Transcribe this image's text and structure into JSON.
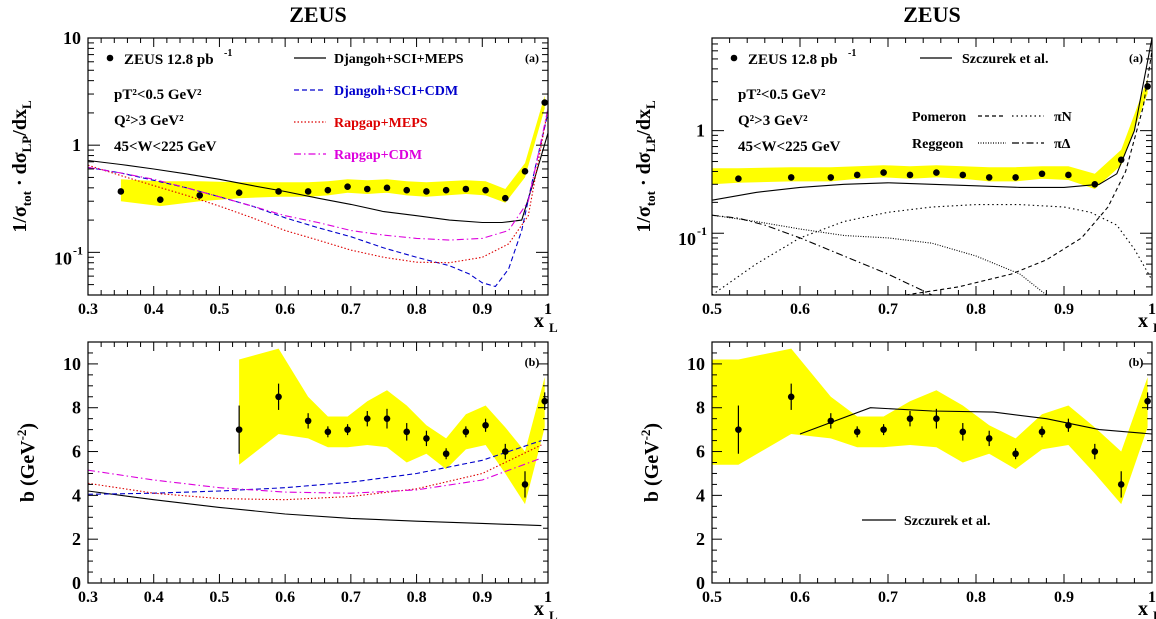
{
  "chart_data": [
    {
      "id": "left-top",
      "type": "line",
      "title": "ZEUS",
      "panel_label": "(a)",
      "ylabel": "1/σtot · dσLP/dxL",
      "xlabel": "xL",
      "xlim": [
        0.3,
        1.0
      ],
      "ylim": [
        0.04,
        10
      ],
      "yscale": "log",
      "xticks": [
        "0.3",
        "0.4",
        "0.5",
        "0.6",
        "0.7",
        "0.8",
        "0.9",
        "1"
      ],
      "yticks": [
        {
          "v": 0.1,
          "label": "10⁻¹"
        },
        {
          "v": 1,
          "label": "1"
        },
        {
          "v": 10,
          "label": "10"
        }
      ],
      "legend": {
        "data": "ZEUS 12.8 pb⁻¹",
        "cuts": [
          "pT²<0.5 GeV²",
          "Q²>3 GeV²",
          "45<W<225 GeV"
        ],
        "entries": [
          {
            "name": "Djangoh+SCI+MEPS",
            "color": "#000000",
            "dash": ""
          },
          {
            "name": "Djangoh+SCI+CDM",
            "color": "#0000cc",
            "dash": "5,3"
          },
          {
            "name": "Rapgap+MEPS",
            "color": "#dd0000",
            "dash": "1.5,2"
          },
          {
            "name": "Rapgap+CDM",
            "color": "#dd00dd",
            "dash": "7,3,1.5,3"
          }
        ]
      },
      "data": {
        "x": [
          0.35,
          0.41,
          0.47,
          0.53,
          0.59,
          0.635,
          0.665,
          0.695,
          0.725,
          0.755,
          0.785,
          0.815,
          0.845,
          0.875,
          0.905,
          0.935,
          0.965,
          0.995
        ],
        "y": [
          0.37,
          0.31,
          0.34,
          0.36,
          0.37,
          0.37,
          0.38,
          0.41,
          0.39,
          0.4,
          0.38,
          0.37,
          0.38,
          0.39,
          0.38,
          0.32,
          0.57,
          2.5
        ],
        "band": {
          "x": [
            0.35,
            0.41,
            0.47,
            0.53,
            0.59,
            0.635,
            0.665,
            0.695,
            0.725,
            0.755,
            0.785,
            0.815,
            0.845,
            0.875,
            0.905,
            0.935,
            0.965,
            0.995
          ],
          "low": [
            0.3,
            0.27,
            0.3,
            0.32,
            0.33,
            0.33,
            0.34,
            0.36,
            0.35,
            0.36,
            0.34,
            0.33,
            0.34,
            0.35,
            0.34,
            0.29,
            0.5,
            2.2
          ],
          "high": [
            0.48,
            0.46,
            0.46,
            0.45,
            0.45,
            0.45,
            0.46,
            0.48,
            0.47,
            0.48,
            0.46,
            0.45,
            0.46,
            0.47,
            0.46,
            0.39,
            0.68,
            2.9
          ]
        }
      },
      "series": [
        {
          "name": "Djangoh+SCI+MEPS",
          "x": [
            0.3,
            0.35,
            0.4,
            0.45,
            0.5,
            0.55,
            0.6,
            0.65,
            0.7,
            0.75,
            0.8,
            0.85,
            0.9,
            0.93,
            0.96,
            0.98,
            1.0
          ],
          "y": [
            0.72,
            0.66,
            0.6,
            0.54,
            0.48,
            0.42,
            0.37,
            0.32,
            0.28,
            0.24,
            0.22,
            0.2,
            0.19,
            0.19,
            0.2,
            0.5,
            1.3
          ]
        },
        {
          "name": "Djangoh+SCI+CDM",
          "x": [
            0.3,
            0.35,
            0.4,
            0.45,
            0.5,
            0.55,
            0.6,
            0.65,
            0.7,
            0.75,
            0.8,
            0.85,
            0.88,
            0.9,
            0.92,
            0.94,
            0.96,
            0.98,
            1.0
          ],
          "y": [
            0.62,
            0.55,
            0.47,
            0.4,
            0.33,
            0.27,
            0.21,
            0.17,
            0.14,
            0.11,
            0.09,
            0.075,
            0.063,
            0.052,
            0.048,
            0.07,
            0.16,
            0.6,
            2.0
          ]
        },
        {
          "name": "Rapgap+MEPS",
          "x": [
            0.3,
            0.35,
            0.4,
            0.45,
            0.5,
            0.55,
            0.6,
            0.65,
            0.7,
            0.75,
            0.8,
            0.85,
            0.9,
            0.94,
            0.97,
            1.0
          ],
          "y": [
            0.65,
            0.52,
            0.42,
            0.34,
            0.27,
            0.21,
            0.16,
            0.13,
            0.105,
            0.09,
            0.081,
            0.08,
            0.09,
            0.12,
            0.22,
            2.2
          ]
        },
        {
          "name": "Rapgap+CDM",
          "x": [
            0.3,
            0.35,
            0.4,
            0.45,
            0.5,
            0.55,
            0.6,
            0.65,
            0.7,
            0.75,
            0.8,
            0.85,
            0.9,
            0.94,
            0.97,
            1.0
          ],
          "y": [
            0.62,
            0.55,
            0.48,
            0.4,
            0.33,
            0.27,
            0.22,
            0.19,
            0.16,
            0.145,
            0.135,
            0.13,
            0.135,
            0.16,
            0.3,
            2.2
          ]
        }
      ]
    },
    {
      "id": "right-top",
      "type": "line",
      "title": "ZEUS",
      "panel_label": "(a)",
      "ylabel": "1/σtot · dσLP/dxL",
      "xlabel": "xL",
      "xlim": [
        0.5,
        1.0
      ],
      "ylim": [
        0.025,
        8
      ],
      "yscale": "log",
      "xticks": [
        "0.5",
        "0.6",
        "0.7",
        "0.8",
        "0.9",
        "1"
      ],
      "yticks": [
        {
          "v": 0.1,
          "label": "10⁻¹"
        },
        {
          "v": 1,
          "label": "1"
        }
      ],
      "legend": {
        "data": "ZEUS 12.8 pb⁻¹",
        "cuts": [
          "pT²<0.5 GeV²",
          "Q²>3 GeV²",
          "45<W<225 GeV"
        ],
        "entries": [
          {
            "name": "Szczurek et al.",
            "color": "#000000",
            "dash": ""
          },
          {
            "name": "Pomeron",
            "color": "#000000",
            "dash": "4,3"
          },
          {
            "name": "πN",
            "color": "#000000",
            "dash": "1.5,3"
          },
          {
            "name": "Reggeon",
            "color": "#000000",
            "dash": "1,1.5"
          },
          {
            "name": "πΔ",
            "color": "#000000",
            "dash": "7,3,1.5,3"
          }
        ]
      },
      "data": {
        "x": [
          0.53,
          0.59,
          0.635,
          0.665,
          0.695,
          0.725,
          0.755,
          0.785,
          0.815,
          0.845,
          0.875,
          0.905,
          0.935,
          0.965,
          0.995
        ],
        "y": [
          0.34,
          0.35,
          0.35,
          0.37,
          0.39,
          0.37,
          0.39,
          0.37,
          0.35,
          0.35,
          0.38,
          0.37,
          0.3,
          0.52,
          2.7
        ],
        "band": {
          "x": [
            0.5,
            0.53,
            0.59,
            0.635,
            0.665,
            0.695,
            0.725,
            0.755,
            0.785,
            0.815,
            0.845,
            0.875,
            0.905,
            0.935,
            0.965,
            0.995
          ],
          "low": [
            0.3,
            0.31,
            0.32,
            0.32,
            0.34,
            0.35,
            0.34,
            0.35,
            0.34,
            0.32,
            0.32,
            0.34,
            0.33,
            0.27,
            0.46,
            2.3
          ],
          "high": [
            0.43,
            0.43,
            0.44,
            0.44,
            0.45,
            0.46,
            0.45,
            0.46,
            0.45,
            0.44,
            0.44,
            0.45,
            0.45,
            0.38,
            0.65,
            3.2
          ]
        }
      },
      "series": [
        {
          "name": "Szczurek et al.",
          "x": [
            0.5,
            0.55,
            0.6,
            0.65,
            0.7,
            0.75,
            0.8,
            0.85,
            0.9,
            0.94,
            0.96,
            0.98,
            1.0
          ],
          "y": [
            0.21,
            0.25,
            0.28,
            0.3,
            0.31,
            0.3,
            0.29,
            0.28,
            0.28,
            0.3,
            0.38,
            1.0,
            8.0
          ]
        },
        {
          "name": "Pomeron",
          "x": [
            0.72,
            0.78,
            0.84,
            0.88,
            0.92,
            0.95,
            0.97,
            0.99,
            1.0
          ],
          "y": [
            0.025,
            0.03,
            0.04,
            0.055,
            0.09,
            0.18,
            0.4,
            1.7,
            6.0
          ]
        },
        {
          "name": "πN",
          "x": [
            0.5,
            0.55,
            0.6,
            0.65,
            0.7,
            0.75,
            0.8,
            0.85,
            0.9,
            0.93,
            0.96,
            0.98,
            1.0
          ],
          "y": [
            0.025,
            0.05,
            0.09,
            0.13,
            0.16,
            0.18,
            0.19,
            0.19,
            0.18,
            0.16,
            0.12,
            0.07,
            0.035
          ]
        },
        {
          "name": "Reggeon",
          "x": [
            0.5,
            0.55,
            0.6,
            0.65,
            0.7,
            0.75,
            0.8,
            0.85,
            0.88
          ],
          "y": [
            0.15,
            0.13,
            0.11,
            0.095,
            0.09,
            0.08,
            0.06,
            0.04,
            0.025
          ]
        },
        {
          "name": "πΔ",
          "x": [
            0.5,
            0.53,
            0.56,
            0.6,
            0.65,
            0.7,
            0.75
          ],
          "y": [
            0.15,
            0.14,
            0.12,
            0.09,
            0.06,
            0.04,
            0.025
          ]
        }
      ]
    },
    {
      "id": "left-bottom",
      "type": "line",
      "panel_label": "(b)",
      "ylabel": "b (GeV⁻²)",
      "xlabel": "xL",
      "xlim": [
        0.3,
        1.0
      ],
      "ylim": [
        0,
        11
      ],
      "yscale": "linear",
      "xticks": [
        "0.3",
        "0.4",
        "0.5",
        "0.6",
        "0.7",
        "0.8",
        "0.9",
        "1"
      ],
      "yticks": [
        {
          "v": 0,
          "label": "0"
        },
        {
          "v": 2,
          "label": "2"
        },
        {
          "v": 4,
          "label": "4"
        },
        {
          "v": 6,
          "label": "6"
        },
        {
          "v": 8,
          "label": "8"
        },
        {
          "v": 10,
          "label": "10"
        }
      ],
      "data": {
        "x": [
          0.53,
          0.59,
          0.635,
          0.665,
          0.695,
          0.725,
          0.755,
          0.785,
          0.815,
          0.845,
          0.875,
          0.905,
          0.935,
          0.965,
          0.995
        ],
        "y": [
          7.0,
          8.5,
          7.4,
          6.9,
          7.0,
          7.5,
          7.5,
          6.9,
          6.6,
          5.9,
          6.9,
          7.2,
          6.0,
          4.5,
          8.3
        ],
        "err": [
          1.1,
          0.6,
          0.35,
          0.25,
          0.25,
          0.35,
          0.45,
          0.4,
          0.35,
          0.25,
          0.25,
          0.3,
          0.35,
          0.6,
          0.4
        ],
        "band": {
          "x": [
            0.53,
            0.59,
            0.635,
            0.665,
            0.695,
            0.725,
            0.755,
            0.785,
            0.815,
            0.845,
            0.875,
            0.905,
            0.935,
            0.965,
            0.995
          ],
          "low": [
            5.4,
            6.8,
            6.6,
            6.2,
            6.2,
            6.3,
            6.2,
            5.5,
            5.9,
            5.2,
            6.1,
            6.3,
            5.0,
            3.6,
            7.1
          ],
          "high": [
            10.2,
            10.7,
            8.5,
            7.6,
            7.6,
            8.3,
            8.8,
            8.1,
            7.2,
            6.6,
            7.7,
            8.1,
            7.1,
            6.0,
            9.4
          ]
        }
      },
      "series": [
        {
          "name": "Djangoh+SCI+MEPS",
          "x": [
            0.3,
            0.4,
            0.5,
            0.6,
            0.7,
            0.8,
            0.9,
            0.99
          ],
          "y": [
            4.2,
            3.8,
            3.45,
            3.15,
            2.95,
            2.82,
            2.72,
            2.62
          ]
        },
        {
          "name": "Djangoh+SCI+CDM",
          "x": [
            0.3,
            0.4,
            0.5,
            0.6,
            0.7,
            0.8,
            0.9,
            0.99
          ],
          "y": [
            4.05,
            4.1,
            4.2,
            4.35,
            4.6,
            5.0,
            5.6,
            6.5
          ]
        },
        {
          "name": "Rapgap+MEPS",
          "x": [
            0.3,
            0.4,
            0.5,
            0.6,
            0.7,
            0.8,
            0.9,
            0.99
          ],
          "y": [
            4.55,
            4.1,
            3.85,
            3.8,
            3.95,
            4.3,
            5.0,
            6.3
          ]
        },
        {
          "name": "Rapgap+CDM",
          "x": [
            0.3,
            0.4,
            0.5,
            0.6,
            0.7,
            0.8,
            0.9,
            0.99
          ],
          "y": [
            5.15,
            4.7,
            4.35,
            4.15,
            4.1,
            4.25,
            4.7,
            5.7
          ]
        }
      ]
    },
    {
      "id": "right-bottom",
      "type": "line",
      "panel_label": "(b)",
      "ylabel": "b (GeV⁻²)",
      "xlabel": "xL",
      "xlim": [
        0.5,
        1.0
      ],
      "ylim": [
        0,
        11
      ],
      "yscale": "linear",
      "xticks": [
        "0.5",
        "0.6",
        "0.7",
        "0.8",
        "0.9",
        "1"
      ],
      "yticks": [
        {
          "v": 0,
          "label": "0"
        },
        {
          "v": 2,
          "label": "2"
        },
        {
          "v": 4,
          "label": "4"
        },
        {
          "v": 6,
          "label": "6"
        },
        {
          "v": 8,
          "label": "8"
        },
        {
          "v": 10,
          "label": "10"
        }
      ],
      "legend": {
        "entries": [
          {
            "name": "Szczurek et al.",
            "color": "#000000",
            "dash": ""
          }
        ]
      },
      "data": {
        "x": [
          0.53,
          0.59,
          0.635,
          0.665,
          0.695,
          0.725,
          0.755,
          0.785,
          0.815,
          0.845,
          0.875,
          0.905,
          0.935,
          0.965,
          0.995
        ],
        "y": [
          7.0,
          8.5,
          7.4,
          6.9,
          7.0,
          7.5,
          7.5,
          6.9,
          6.6,
          5.9,
          6.9,
          7.2,
          6.0,
          4.5,
          8.3
        ],
        "err": [
          1.1,
          0.6,
          0.35,
          0.25,
          0.25,
          0.35,
          0.45,
          0.4,
          0.35,
          0.25,
          0.25,
          0.3,
          0.35,
          0.6,
          0.4
        ],
        "band": {
          "x": [
            0.5,
            0.53,
            0.59,
            0.635,
            0.665,
            0.695,
            0.725,
            0.755,
            0.785,
            0.815,
            0.845,
            0.875,
            0.905,
            0.935,
            0.965,
            0.995
          ],
          "low": [
            5.4,
            5.4,
            6.8,
            6.6,
            6.2,
            6.2,
            6.3,
            6.2,
            5.5,
            5.9,
            5.2,
            6.1,
            6.3,
            5.0,
            3.6,
            7.1
          ],
          "high": [
            10.2,
            10.2,
            10.7,
            8.5,
            7.6,
            7.6,
            8.3,
            8.8,
            8.1,
            7.2,
            6.6,
            7.7,
            8.1,
            7.1,
            6.0,
            9.4
          ]
        }
      },
      "series": [
        {
          "name": "Szczurek et al.",
          "x": [
            0.6,
            0.68,
            0.75,
            0.82,
            0.88,
            0.94,
            1.0
          ],
          "y": [
            6.8,
            8.0,
            7.85,
            7.8,
            7.5,
            7.0,
            6.8
          ]
        }
      ]
    }
  ],
  "colors": {
    "band": "#ffff00",
    "axis": "#000000",
    "points": "#000000"
  }
}
